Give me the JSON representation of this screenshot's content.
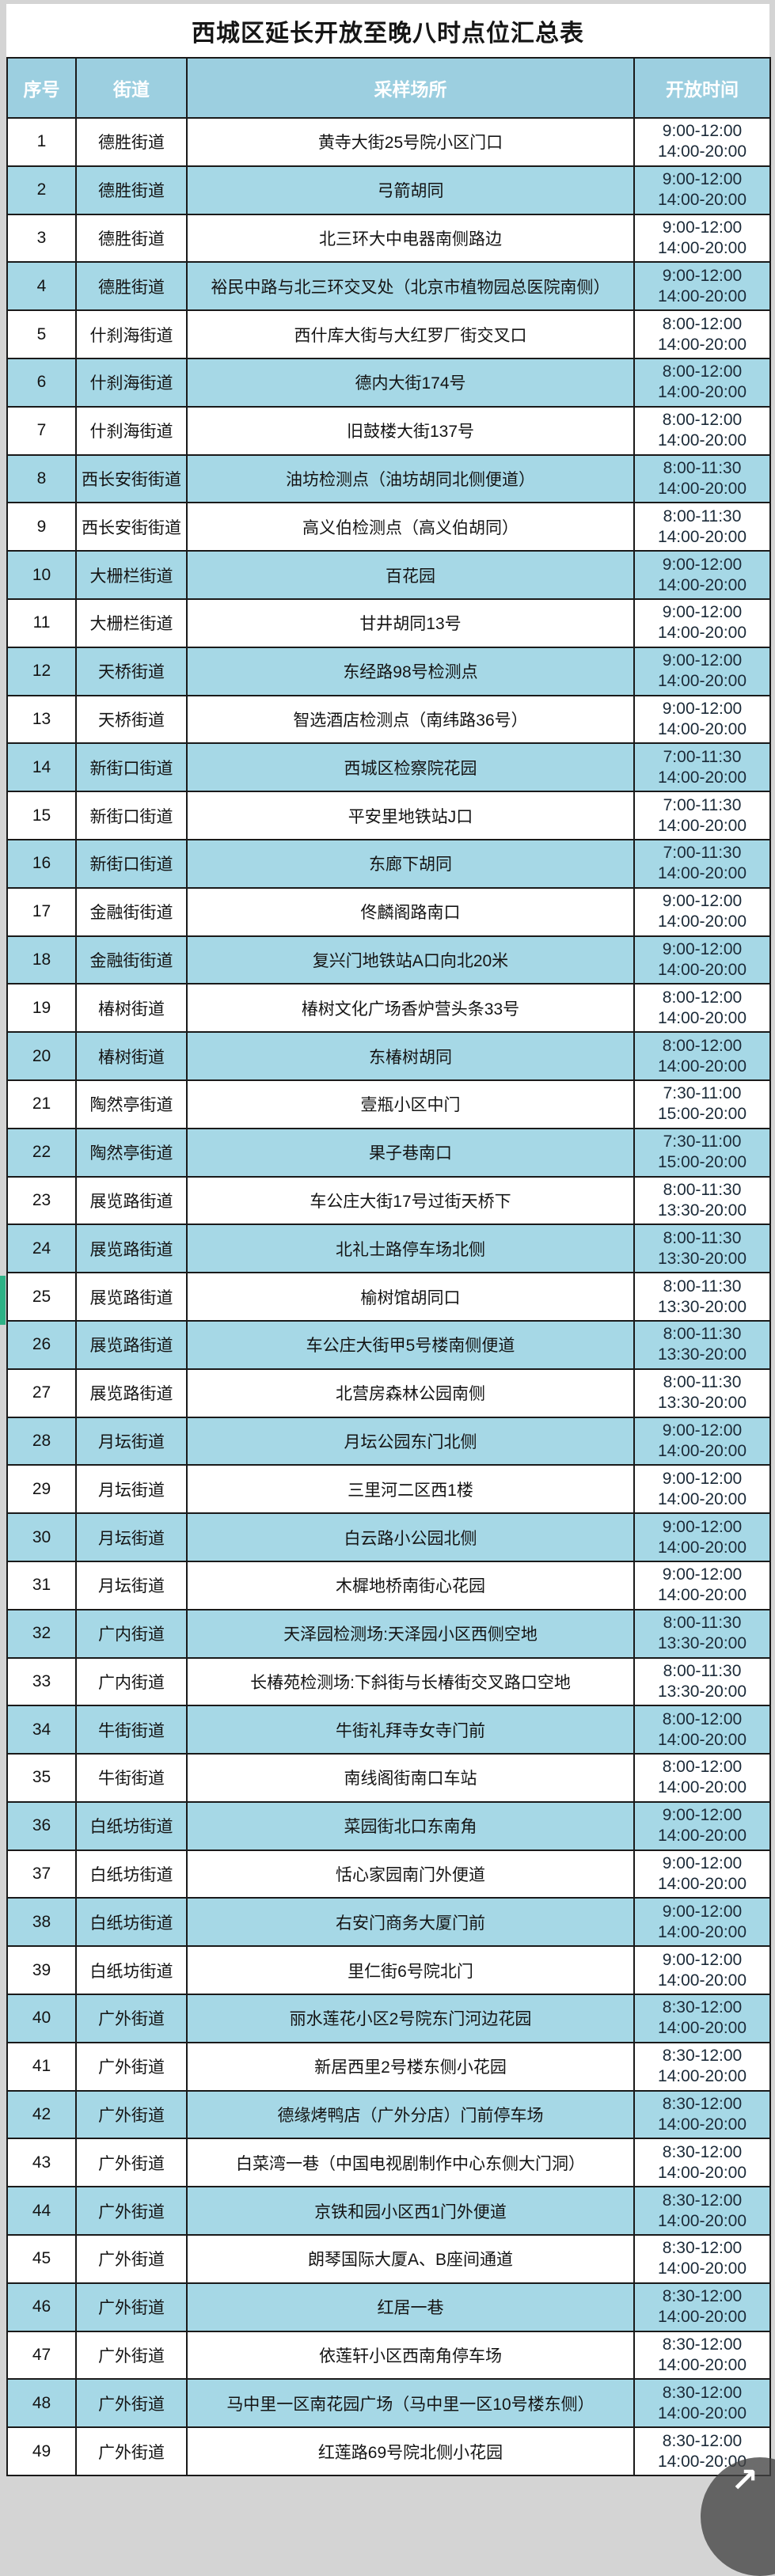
{
  "page": {
    "title": "西城区延长开放至晚八时点位汇总表"
  },
  "colors": {
    "header_blue": "#9ccfe0",
    "row_blue": "#a6d8e6",
    "border_black": "#1a1a1a",
    "selection_green": "#2eb286",
    "page_grey": "#d4d4d4"
  },
  "table": {
    "columns": [
      "序号",
      "街道",
      "采样场所",
      "开放时间"
    ],
    "rows": [
      {
        "no": "1",
        "street": "德胜街道",
        "site": "黄寺大街25号院小区门口",
        "t1": "9:00-12:00",
        "t2": "14:00-20:00"
      },
      {
        "no": "2",
        "street": "德胜街道",
        "site": "弓箭胡同",
        "t1": "9:00-12:00",
        "t2": "14:00-20:00"
      },
      {
        "no": "3",
        "street": "德胜街道",
        "site": "北三环大中电器南侧路边",
        "t1": "9:00-12:00",
        "t2": "14:00-20:00"
      },
      {
        "no": "4",
        "street": "德胜街道",
        "site": "裕民中路与北三环交叉处（北京市植物园总医院南侧）",
        "t1": "9:00-12:00",
        "t2": "14:00-20:00"
      },
      {
        "no": "5",
        "street": "什刹海街道",
        "site": "西什库大街与大红罗厂街交叉口",
        "t1": "8:00-12:00",
        "t2": "14:00-20:00"
      },
      {
        "no": "6",
        "street": "什刹海街道",
        "site": "德内大街174号",
        "t1": "8:00-12:00",
        "t2": "14:00-20:00"
      },
      {
        "no": "7",
        "street": "什刹海街道",
        "site": "旧鼓楼大街137号",
        "t1": "8:00-12:00",
        "t2": "14:00-20:00"
      },
      {
        "no": "8",
        "street": "西长安街街道",
        "site": "油坊检测点（油坊胡同北侧便道）",
        "t1": "8:00-11:30",
        "t2": "14:00-20:00"
      },
      {
        "no": "9",
        "street": "西长安街街道",
        "site": "高义伯检测点（高义伯胡同）",
        "t1": "8:00-11:30",
        "t2": "14:00-20:00"
      },
      {
        "no": "10",
        "street": "大栅栏街道",
        "site": "百花园",
        "t1": "9:00-12:00",
        "t2": "14:00-20:00"
      },
      {
        "no": "11",
        "street": "大栅栏街道",
        "site": "甘井胡同13号",
        "t1": "9:00-12:00",
        "t2": "14:00-20:00"
      },
      {
        "no": "12",
        "street": "天桥街道",
        "site": "东经路98号检测点",
        "t1": "9:00-12:00",
        "t2": "14:00-20:00"
      },
      {
        "no": "13",
        "street": "天桥街道",
        "site": "智选酒店检测点（南纬路36号）",
        "t1": "9:00-12:00",
        "t2": "14:00-20:00"
      },
      {
        "no": "14",
        "street": "新街口街道",
        "site": "西城区检察院花园",
        "t1": "7:00-11:30",
        "t2": "14:00-20:00"
      },
      {
        "no": "15",
        "street": "新街口街道",
        "site": "平安里地铁站J口",
        "t1": "7:00-11:30",
        "t2": "14:00-20:00"
      },
      {
        "no": "16",
        "street": "新街口街道",
        "site": "东廊下胡同",
        "t1": "7:00-11:30",
        "t2": "14:00-20:00"
      },
      {
        "no": "17",
        "street": "金融街街道",
        "site": "佟麟阁路南口",
        "t1": "9:00-12:00",
        "t2": "14:00-20:00"
      },
      {
        "no": "18",
        "street": "金融街街道",
        "site": "复兴门地铁站A口向北20米",
        "t1": "9:00-12:00",
        "t2": "14:00-20:00"
      },
      {
        "no": "19",
        "street": "椿树街道",
        "site": "椿树文化广场香炉营头条33号",
        "t1": "8:00-12:00",
        "t2": "14:00-20:00"
      },
      {
        "no": "20",
        "street": "椿树街道",
        "site": "东椿树胡同",
        "t1": "8:00-12:00",
        "t2": "14:00-20:00"
      },
      {
        "no": "21",
        "street": "陶然亭街道",
        "site": "壹瓶小区中门",
        "t1": "7:30-11:00",
        "t2": "15:00-20:00"
      },
      {
        "no": "22",
        "street": "陶然亭街道",
        "site": "果子巷南口",
        "t1": "7:30-11:00",
        "t2": "15:00-20:00"
      },
      {
        "no": "23",
        "street": "展览路街道",
        "site": "车公庄大街17号过街天桥下",
        "t1": "8:00-11:30",
        "t2": "13:30-20:00"
      },
      {
        "no": "24",
        "street": "展览路街道",
        "site": "北礼士路停车场北侧",
        "t1": "8:00-11:30",
        "t2": "13:30-20:00"
      },
      {
        "no": "25",
        "street": "展览路街道",
        "site": "榆树馆胡同口",
        "t1": "8:00-11:30",
        "t2": "13:30-20:00"
      },
      {
        "no": "26",
        "street": "展览路街道",
        "site": "车公庄大街甲5号楼南侧便道",
        "t1": "8:00-11:30",
        "t2": "13:30-20:00"
      },
      {
        "no": "27",
        "street": "展览路街道",
        "site": "北营房森林公园南侧",
        "t1": "8:00-11:30",
        "t2": "13:30-20:00"
      },
      {
        "no": "28",
        "street": "月坛街道",
        "site": "月坛公园东门北侧",
        "t1": "9:00-12:00",
        "t2": "14:00-20:00"
      },
      {
        "no": "29",
        "street": "月坛街道",
        "site": "三里河二区西1楼",
        "t1": "9:00-12:00",
        "t2": "14:00-20:00"
      },
      {
        "no": "30",
        "street": "月坛街道",
        "site": "白云路小公园北侧",
        "t1": "9:00-12:00",
        "t2": "14:00-20:00"
      },
      {
        "no": "31",
        "street": "月坛街道",
        "site": "木樨地桥南街心花园",
        "t1": "9:00-12:00",
        "t2": "14:00-20:00"
      },
      {
        "no": "32",
        "street": "广内街道",
        "site": "天泽园检测场:天泽园小区西侧空地",
        "t1": "8:00-11:30",
        "t2": "13:30-20:00"
      },
      {
        "no": "33",
        "street": "广内街道",
        "site": "长椿苑检测场:下斜街与长椿街交叉路口空地",
        "t1": "8:00-11:30",
        "t2": "13:30-20:00"
      },
      {
        "no": "34",
        "street": "牛街街道",
        "site": "牛街礼拜寺女寺门前",
        "t1": "8:00-12:00",
        "t2": "14:00-20:00"
      },
      {
        "no": "35",
        "street": "牛街街道",
        "site": "南线阁街南口车站",
        "t1": "8:00-12:00",
        "t2": "14:00-20:00"
      },
      {
        "no": "36",
        "street": "白纸坊街道",
        "site": "菜园街北口东南角",
        "t1": "9:00-12:00",
        "t2": "14:00-20:00"
      },
      {
        "no": "37",
        "street": "白纸坊街道",
        "site": "恬心家园南门外便道",
        "t1": "9:00-12:00",
        "t2": "14:00-20:00"
      },
      {
        "no": "38",
        "street": "白纸坊街道",
        "site": "右安门商务大厦门前",
        "t1": "9:00-12:00",
        "t2": "14:00-20:00"
      },
      {
        "no": "39",
        "street": "白纸坊街道",
        "site": "里仁街6号院北门",
        "t1": "9:00-12:00",
        "t2": "14:00-20:00"
      },
      {
        "no": "40",
        "street": "广外街道",
        "site": "丽水莲花小区2号院东门河边花园",
        "t1": "8:30-12:00",
        "t2": "14:00-20:00"
      },
      {
        "no": "41",
        "street": "广外街道",
        "site": "新居西里2号楼东侧小花园",
        "t1": "8:30-12:00",
        "t2": "14:00-20:00"
      },
      {
        "no": "42",
        "street": "广外街道",
        "site": "德缘烤鸭店（广外分店）门前停车场",
        "t1": "8:30-12:00",
        "t2": "14:00-20:00"
      },
      {
        "no": "43",
        "street": "广外街道",
        "site": "白菜湾一巷（中国电视剧制作中心东侧大门洞）",
        "t1": "8:30-12:00",
        "t2": "14:00-20:00"
      },
      {
        "no": "44",
        "street": "广外街道",
        "site": "京铁和园小区西1门外便道",
        "t1": "8:30-12:00",
        "t2": "14:00-20:00"
      },
      {
        "no": "45",
        "street": "广外街道",
        "site": "朗琴国际大厦A、B座间通道",
        "t1": "8:30-12:00",
        "t2": "14:00-20:00"
      },
      {
        "no": "46",
        "street": "广外街道",
        "site": "红居一巷",
        "t1": "8:30-12:00",
        "t2": "14:00-20:00"
      },
      {
        "no": "47",
        "street": "广外街道",
        "site": "依莲轩小区西南角停车场",
        "t1": "8:30-12:00",
        "t2": "14:00-20:00"
      },
      {
        "no": "48",
        "street": "广外街道",
        "site": "马中里一区南花园广场（马中里一区10号楼东侧）",
        "t1": "8:30-12:00",
        "t2": "14:00-20:00"
      },
      {
        "no": "49",
        "street": "广外街道",
        "site": "红莲路69号院北侧小花园",
        "t1": "8:30-12:00",
        "t2": "14:00-20:00"
      }
    ]
  },
  "floating_button": {
    "icon": "arrow-up-right",
    "glyph": "↗"
  }
}
